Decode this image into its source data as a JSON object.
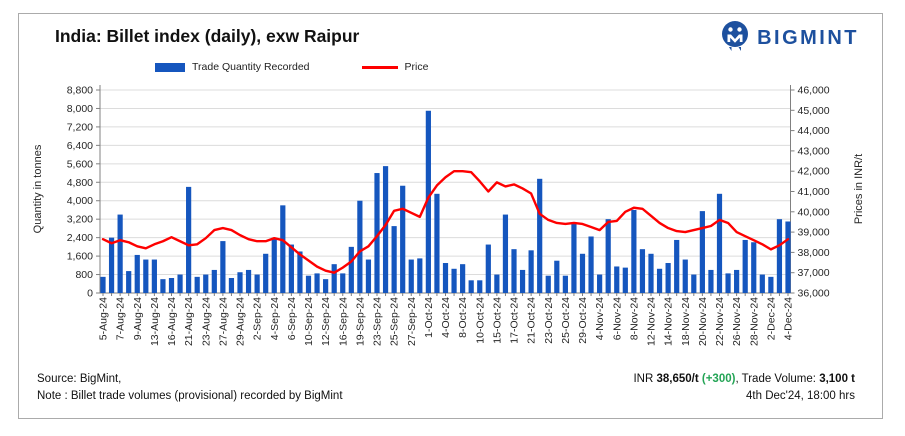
{
  "header": {
    "title": "India: Billet index (daily), exw Raipur",
    "brand": "BIGMINT"
  },
  "legend": {
    "bars_label": "Trade Quantity Recorded",
    "line_label": "Price"
  },
  "axes": {
    "left_title": "Quantity in tonnes",
    "right_title": "Prices in INR/t"
  },
  "footer": {
    "source": "Source: BigMint,",
    "note": "Note : Billet trade volumes (provisional) recorded by BigMint",
    "inr_prefix": "INR ",
    "price": "38,650/t",
    "change": "(+300)",
    "mid": ", Trade Volume: ",
    "volume": "3,100 t",
    "datetime": "4th Dec'24, 18:00 hrs"
  },
  "colors": {
    "bar_blue": "#1556be",
    "line_red": "#fe0000",
    "brand_navy": "#1d509e",
    "green": "#23a455",
    "grid": "#dcdcdc",
    "axis": "#808080",
    "tick_text": "#262626"
  },
  "chart_data": {
    "type": "bar+line",
    "title": "India: Billet index (daily), exw Raipur",
    "series": [
      {
        "name": "Trade Quantity Recorded",
        "type": "bar",
        "axis": "left"
      },
      {
        "name": "Price",
        "type": "line",
        "axis": "right"
      }
    ],
    "left_axis": {
      "title": "Quantity in tonnes",
      "min": 0,
      "max": 8800,
      "step": 800
    },
    "right_axis": {
      "title": "Prices in INR/t",
      "min": 36000,
      "max": 46000,
      "step": 1000
    },
    "grid": true,
    "legend_position": "top",
    "points": [
      {
        "label": "5-Aug-24",
        "qty": 700,
        "price": 38650
      },
      {
        "label": "",
        "qty": 2400,
        "price": 38450
      },
      {
        "label": "7-Aug-24",
        "qty": 3400,
        "price": 38600
      },
      {
        "label": "",
        "qty": 950,
        "price": 38500
      },
      {
        "label": "9-Aug-24",
        "qty": 1650,
        "price": 38300
      },
      {
        "label": "",
        "qty": 1450,
        "price": 38200
      },
      {
        "label": "13-Aug-24",
        "qty": 1450,
        "price": 38400
      },
      {
        "label": "",
        "qty": 600,
        "price": 38550
      },
      {
        "label": "16-Aug-24",
        "qty": 650,
        "price": 38750
      },
      {
        "label": "",
        "qty": 800,
        "price": 38550
      },
      {
        "label": "21-Aug-24",
        "qty": 4600,
        "price": 38350
      },
      {
        "label": "",
        "qty": 700,
        "price": 38400
      },
      {
        "label": "23-Aug-24",
        "qty": 800,
        "price": 38700
      },
      {
        "label": "",
        "qty": 1000,
        "price": 39100
      },
      {
        "label": "27-Aug-24",
        "qty": 2250,
        "price": 39200
      },
      {
        "label": "",
        "qty": 650,
        "price": 39100
      },
      {
        "label": "29-Aug-24",
        "qty": 900,
        "price": 38850
      },
      {
        "label": "",
        "qty": 1000,
        "price": 38650
      },
      {
        "label": "2-Sep-24",
        "qty": 800,
        "price": 38550
      },
      {
        "label": "",
        "qty": 1700,
        "price": 38550
      },
      {
        "label": "4-Sep-24",
        "qty": 2400,
        "price": 38700
      },
      {
        "label": "",
        "qty": 3800,
        "price": 38600
      },
      {
        "label": "6-Sep-24",
        "qty": 2100,
        "price": 38250
      },
      {
        "label": "",
        "qty": 1800,
        "price": 37900
      },
      {
        "label": "10-Sep-24",
        "qty": 750,
        "price": 37600
      },
      {
        "label": "",
        "qty": 850,
        "price": 37300
      },
      {
        "label": "12-Sep-24",
        "qty": 600,
        "price": 37100
      },
      {
        "label": "",
        "qty": 1250,
        "price": 37000
      },
      {
        "label": "16-Sep-24",
        "qty": 850,
        "price": 37250
      },
      {
        "label": "",
        "qty": 2000,
        "price": 37550
      },
      {
        "label": "19-Sep-24",
        "qty": 4000,
        "price": 38050
      },
      {
        "label": "",
        "qty": 1450,
        "price": 38300
      },
      {
        "label": "23-Sep-24",
        "qty": 5200,
        "price": 38800
      },
      {
        "label": "",
        "qty": 5500,
        "price": 39350
      },
      {
        "label": "25-Sep-24",
        "qty": 2900,
        "price": 40050
      },
      {
        "label": "",
        "qty": 4650,
        "price": 40150
      },
      {
        "label": "27-Sep-24",
        "qty": 1450,
        "price": 39950
      },
      {
        "label": "",
        "qty": 1500,
        "price": 39750
      },
      {
        "label": "1-Oct-24",
        "qty": 7900,
        "price": 40700
      },
      {
        "label": "",
        "qty": 4300,
        "price": 41300
      },
      {
        "label": "4-Oct-24",
        "qty": 1300,
        "price": 41700
      },
      {
        "label": "",
        "qty": 1050,
        "price": 42000
      },
      {
        "label": "8-Oct-24",
        "qty": 1250,
        "price": 42000
      },
      {
        "label": "",
        "qty": 550,
        "price": 41950
      },
      {
        "label": "10-Oct-24",
        "qty": 550,
        "price": 41500
      },
      {
        "label": "",
        "qty": 2100,
        "price": 41000
      },
      {
        "label": "15-Oct-24",
        "qty": 800,
        "price": 41450
      },
      {
        "label": "",
        "qty": 3400,
        "price": 41250
      },
      {
        "label": "17-Oct-24",
        "qty": 1900,
        "price": 41350
      },
      {
        "label": "",
        "qty": 1000,
        "price": 41150
      },
      {
        "label": "21-Oct-24",
        "qty": 1850,
        "price": 40900
      },
      {
        "label": "",
        "qty": 4950,
        "price": 39900
      },
      {
        "label": "23-Oct-24",
        "qty": 750,
        "price": 39600
      },
      {
        "label": "",
        "qty": 1400,
        "price": 39450
      },
      {
        "label": "25-Oct-24",
        "qty": 750,
        "price": 39400
      },
      {
        "label": "",
        "qty": 3050,
        "price": 39450
      },
      {
        "label": "29-Oct-24",
        "qty": 1700,
        "price": 39400
      },
      {
        "label": "",
        "qty": 2450,
        "price": 39250
      },
      {
        "label": "4-Nov-24",
        "qty": 800,
        "price": 39100
      },
      {
        "label": "",
        "qty": 3200,
        "price": 39500
      },
      {
        "label": "6-Nov-24",
        "qty": 1150,
        "price": 39550
      },
      {
        "label": "",
        "qty": 1100,
        "price": 40000
      },
      {
        "label": "8-Nov-24",
        "qty": 3600,
        "price": 40200
      },
      {
        "label": "",
        "qty": 1900,
        "price": 40150
      },
      {
        "label": "12-Nov-24",
        "qty": 1700,
        "price": 39800
      },
      {
        "label": "",
        "qty": 1050,
        "price": 39450
      },
      {
        "label": "14-Nov-24",
        "qty": 1300,
        "price": 39200
      },
      {
        "label": "",
        "qty": 2300,
        "price": 39050
      },
      {
        "label": "18-Nov-24",
        "qty": 1450,
        "price": 39000
      },
      {
        "label": "",
        "qty": 800,
        "price": 39100
      },
      {
        "label": "20-Nov-24",
        "qty": 3550,
        "price": 39200
      },
      {
        "label": "",
        "qty": 1000,
        "price": 39300
      },
      {
        "label": "22-Nov-24",
        "qty": 4300,
        "price": 39600
      },
      {
        "label": "",
        "qty": 850,
        "price": 39450
      },
      {
        "label": "26-Nov-24",
        "qty": 1000,
        "price": 39000
      },
      {
        "label": "",
        "qty": 2300,
        "price": 38800
      },
      {
        "label": "28-Nov-24",
        "qty": 2200,
        "price": 38600
      },
      {
        "label": "",
        "qty": 800,
        "price": 38400
      },
      {
        "label": "2-Dec-24",
        "qty": 700,
        "price": 38150
      },
      {
        "label": "",
        "qty": 3200,
        "price": 38350
      },
      {
        "label": "4-Dec-24",
        "qty": 3100,
        "price": 38650
      }
    ]
  }
}
